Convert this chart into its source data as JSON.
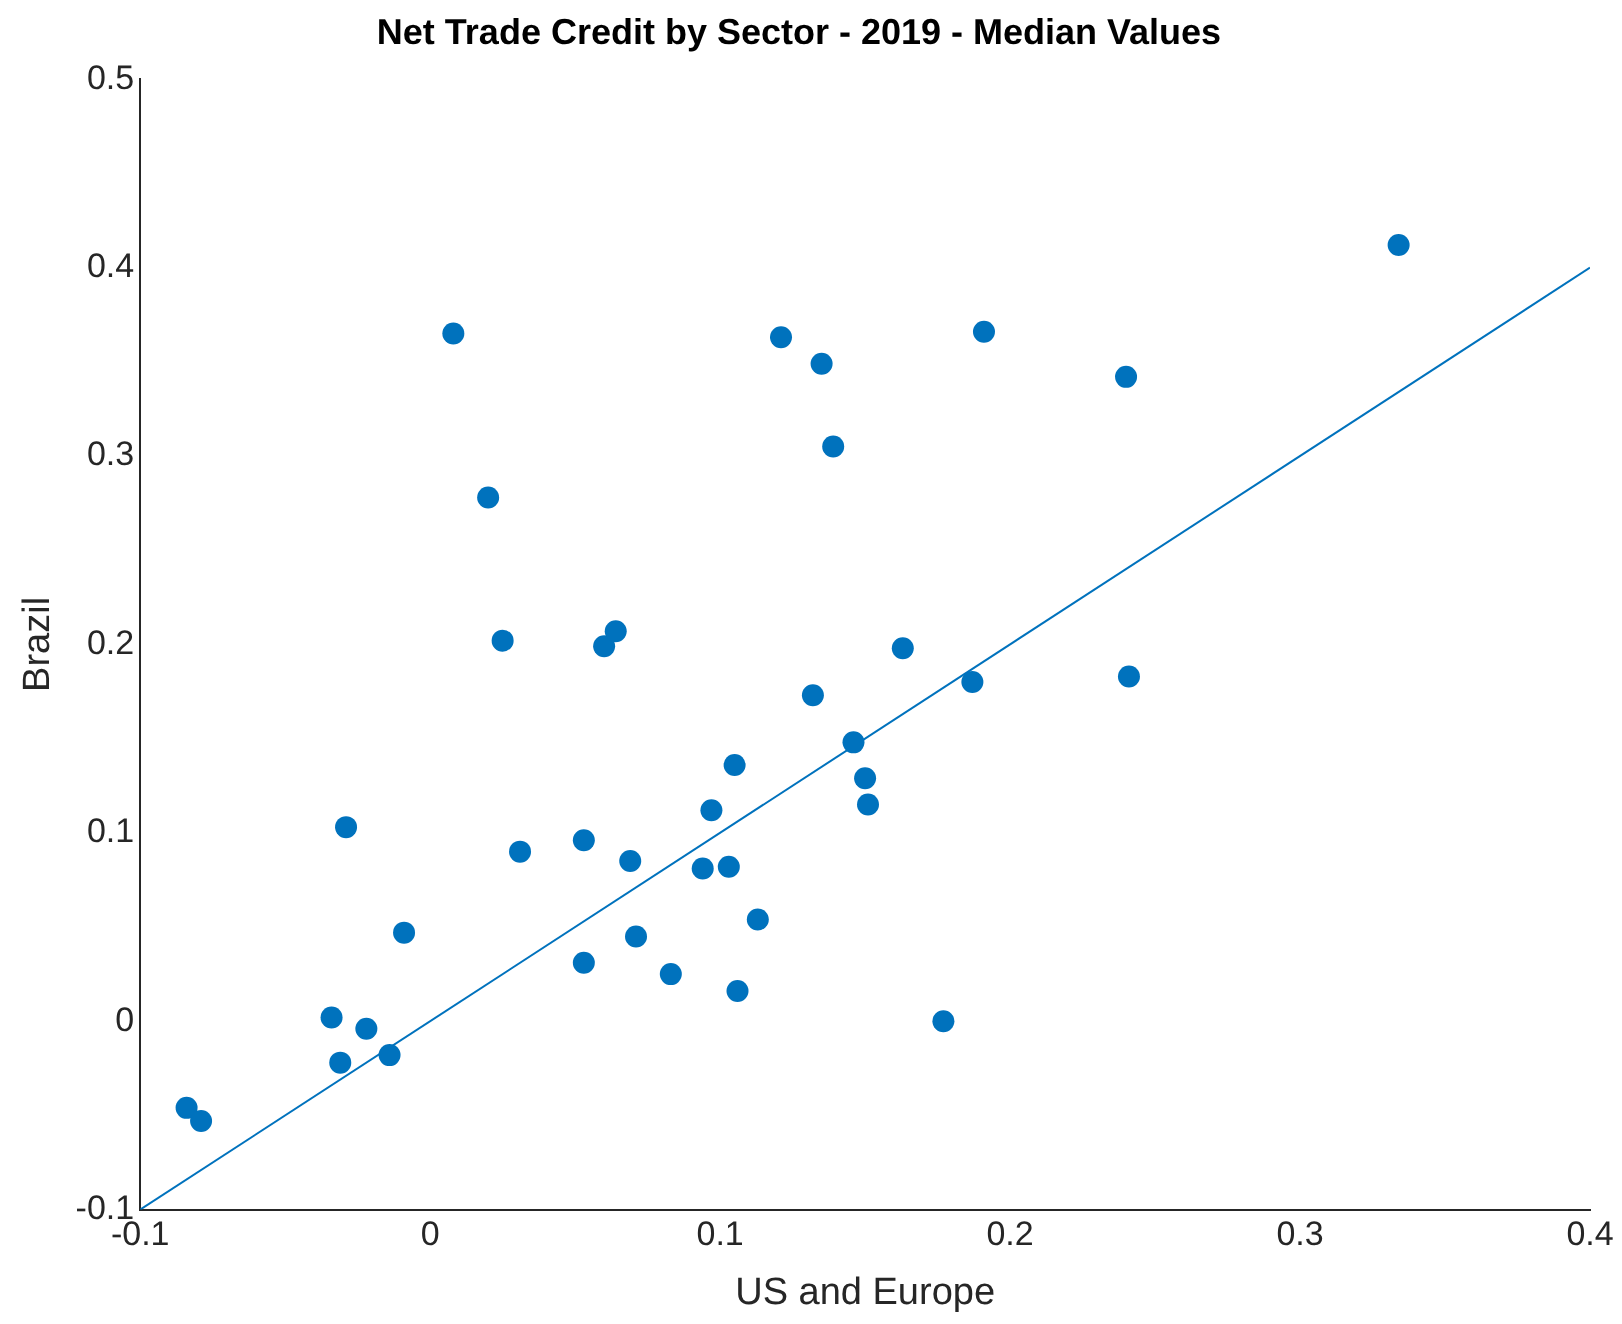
{
  "chart_data": {
    "type": "scatter",
    "title": "Net Trade Credit by Sector - 2019 - Median Values",
    "xlabel": "US and Europe",
    "ylabel": "Brazil",
    "xlim": [
      -0.1,
      0.4
    ],
    "ylim": [
      -0.1,
      0.5
    ],
    "xticks": [
      {
        "value": -0.1,
        "label": "-0.1"
      },
      {
        "value": 0,
        "label": "0"
      },
      {
        "value": 0.1,
        "label": "0.1"
      },
      {
        "value": 0.2,
        "label": "0.2"
      },
      {
        "value": 0.3,
        "label": "0.3"
      },
      {
        "value": 0.4,
        "label": "0.4"
      }
    ],
    "yticks": [
      {
        "value": -0.1,
        "label": "-0.1"
      },
      {
        "value": 0,
        "label": "0"
      },
      {
        "value": 0.1,
        "label": "0.1"
      },
      {
        "value": 0.2,
        "label": "0.2"
      },
      {
        "value": 0.3,
        "label": "0.3"
      },
      {
        "value": 0.4,
        "label": "0.4"
      },
      {
        "value": 0.5,
        "label": "0.5"
      }
    ],
    "grid": false,
    "legend": false,
    "series": [
      {
        "color": "#0072bd",
        "marker": "circle",
        "x": [
          -0.084,
          -0.079,
          -0.034,
          -0.031,
          -0.022,
          -0.014,
          -0.029,
          -0.009,
          0.008,
          0.02,
          0.025,
          0.031,
          0.053,
          0.053,
          0.06,
          0.064,
          0.069,
          0.071,
          0.083,
          0.094,
          0.097,
          0.103,
          0.105,
          0.106,
          0.113,
          0.121,
          0.132,
          0.135,
          0.139,
          0.146,
          0.15,
          0.151,
          0.163,
          0.177,
          0.187,
          0.191,
          0.24,
          0.241,
          0.334
        ],
        "values": [
          -0.046,
          -0.053,
          0.002,
          -0.022,
          -0.004,
          -0.018,
          0.103,
          0.047,
          0.365,
          0.278,
          0.202,
          0.09,
          0.031,
          0.096,
          0.199,
          0.207,
          0.085,
          0.045,
          0.025,
          0.081,
          0.112,
          0.082,
          0.136,
          0.016,
          0.054,
          0.363,
          0.173,
          0.349,
          0.305,
          0.148,
          0.129,
          0.115,
          0.198,
          0.0,
          0.18,
          0.366,
          0.342,
          0.183,
          0.412
        ]
      },
      {
        "type": "line",
        "color": "#0072bd",
        "marker": "none",
        "line_style": "solid",
        "x": [
          -0.1,
          0.4
        ],
        "values": [
          -0.1,
          0.4
        ]
      }
    ]
  }
}
